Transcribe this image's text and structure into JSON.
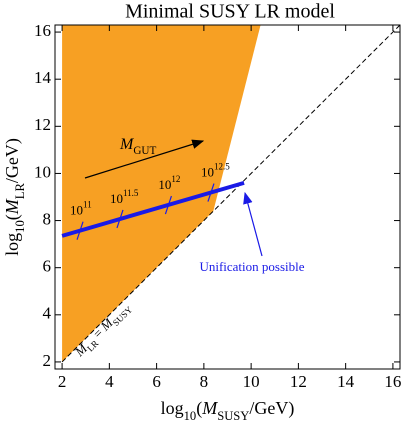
{
  "chart_data": {
    "type": "region",
    "title": "Minimal SUSY LR model",
    "xlabel": [
      {
        "text": "log"
      },
      {
        "text": "10",
        "sub": true
      },
      {
        "text": "("
      },
      {
        "text": "M",
        "italic": true
      },
      {
        "text": "SUSY",
        "sub": true
      },
      {
        "text": "/GeV)"
      }
    ],
    "ylabel": [
      {
        "text": "log"
      },
      {
        "text": "10",
        "sub": true
      },
      {
        "text": "("
      },
      {
        "text": "M",
        "italic": true
      },
      {
        "text": "LR",
        "sub": true
      },
      {
        "text": "/GeV)"
      }
    ],
    "xlim": [
      1.7,
      16.3
    ],
    "ylim": [
      1.7,
      16.3
    ],
    "xticks": [
      2,
      4,
      6,
      8,
      10,
      12,
      14,
      16
    ],
    "yticks": [
      2,
      4,
      6,
      8,
      10,
      12,
      14,
      16
    ],
    "region": {
      "color": "#f7a023",
      "x": [
        2,
        8.4,
        10.4,
        2
      ],
      "y": [
        2,
        8.4,
        16.3,
        16.3
      ]
    },
    "diagonal": {
      "x": [
        2,
        16.3
      ],
      "y": [
        2,
        16.3
      ],
      "label": [
        {
          "text": "M",
          "italic": true
        },
        {
          "text": "LR",
          "sub": true
        },
        {
          "text": " = "
        },
        {
          "text": "M",
          "italic": true
        },
        {
          "text": "SUSY",
          "sub": true
        }
      ]
    },
    "series": [
      {
        "color": "#1a1ae6",
        "x": [
          2,
          9.7
        ],
        "y": [
          7.35,
          9.6
        ]
      }
    ],
    "scale_marks": [
      {
        "x": 2.76,
        "y": 7.57,
        "base": "10",
        "exponent": "11"
      },
      {
        "x": 4.45,
        "y": 8.07,
        "base": "10",
        "exponent": "11.5"
      },
      {
        "x": 6.5,
        "y": 8.66,
        "base": "10",
        "exponent": "12"
      },
      {
        "x": 8.3,
        "y": 9.19,
        "base": "10",
        "exponent": "12.5"
      }
    ],
    "gut_label": [
      {
        "text": "M",
        "italic": true
      },
      {
        "text": "GUT",
        "sub": true
      }
    ],
    "annotation": "Unification possible"
  }
}
